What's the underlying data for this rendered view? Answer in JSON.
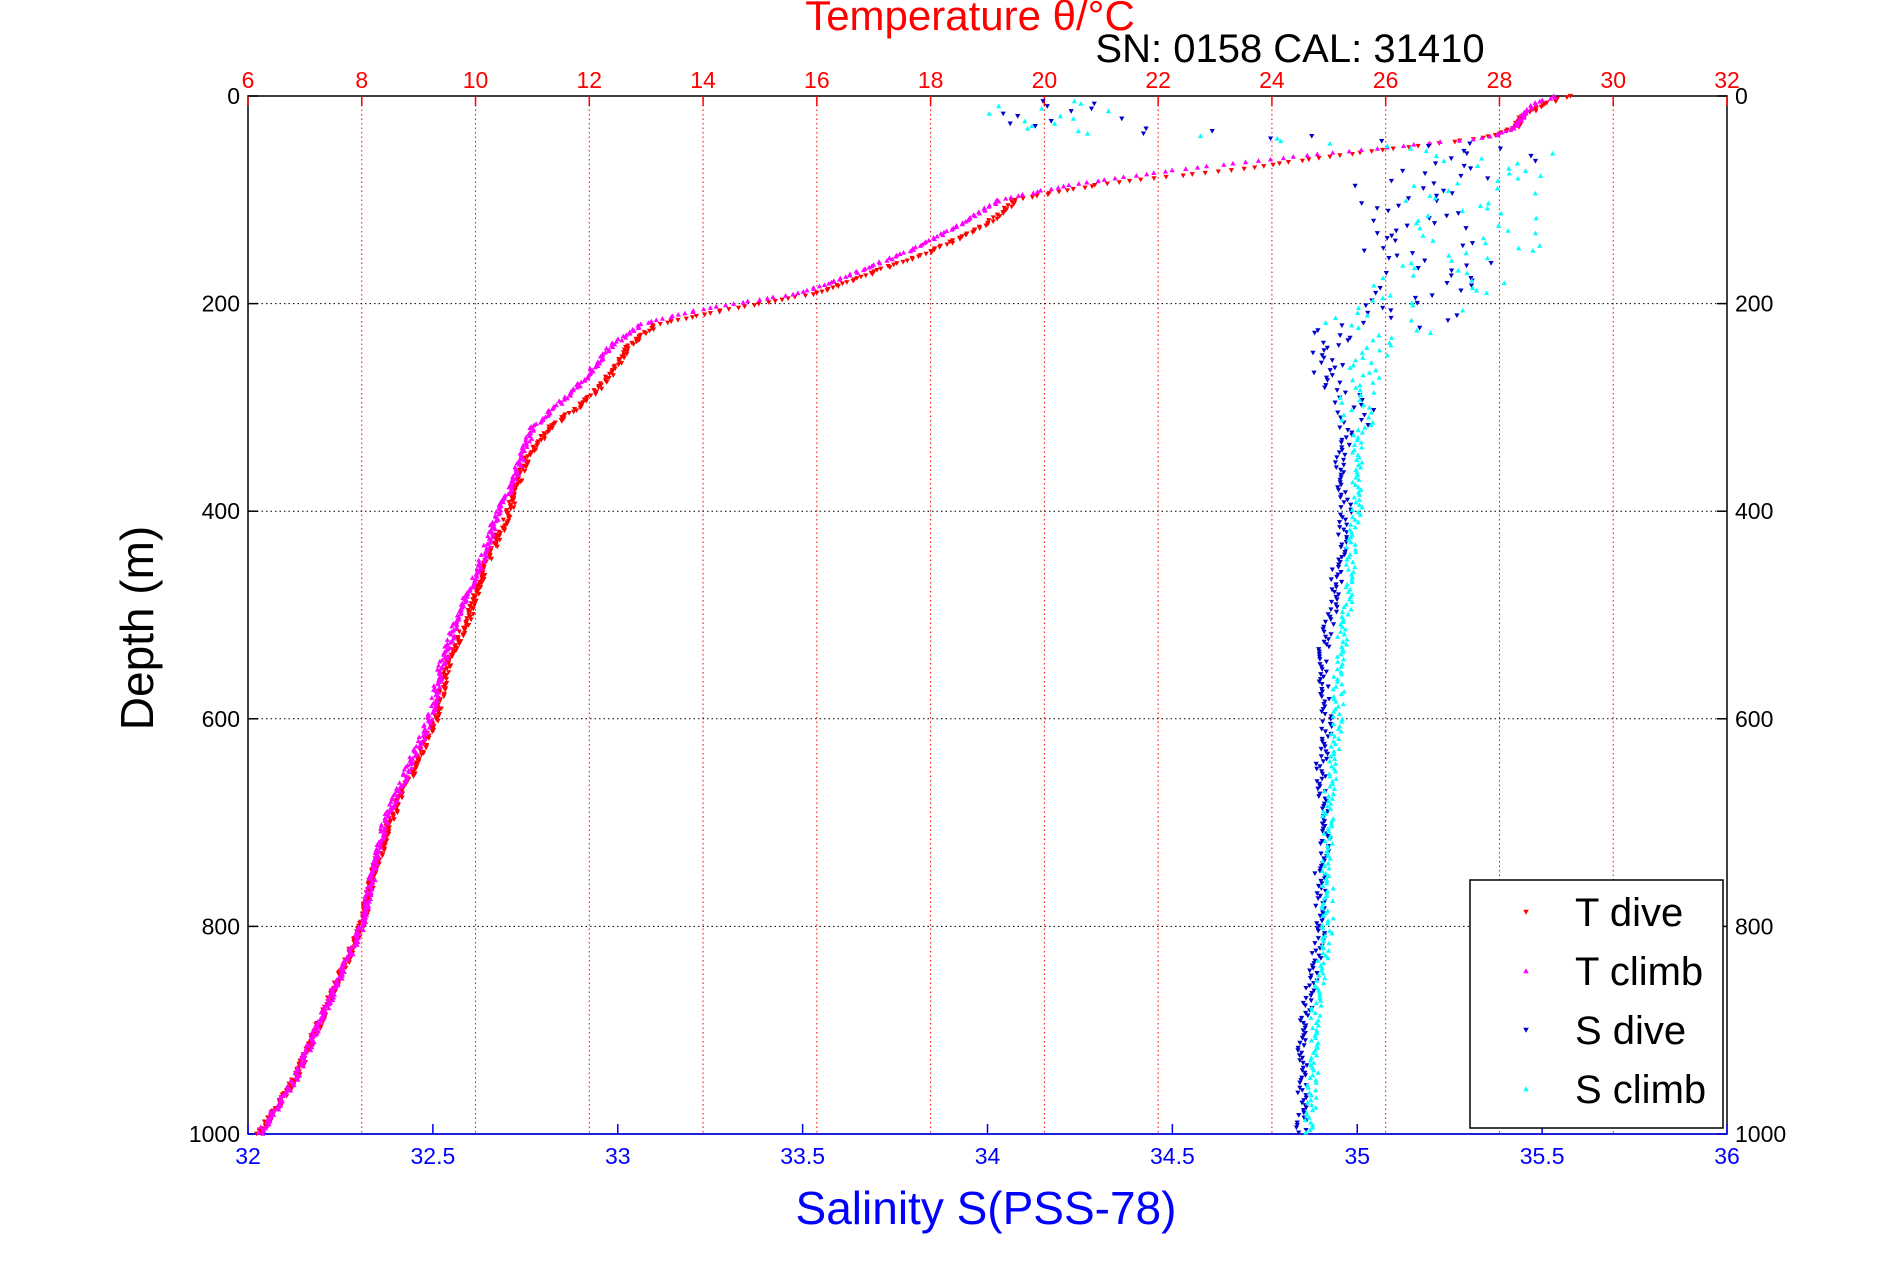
{
  "chart_data": {
    "type": "scatter",
    "title": "Temperature θ/°C",
    "subtitle": "SN: 0158  CAL: 31410",
    "xlabel": "Salinity S(PSS-78)",
    "ylabel": "Depth (m)",
    "ylim": [
      0,
      1000
    ],
    "y_reversed": true,
    "y_ticks": [
      "0",
      "200",
      "400",
      "600",
      "800",
      "1000"
    ],
    "y_tick_values": [
      0,
      200,
      400,
      600,
      800,
      1000
    ],
    "top_axis": {
      "label": "Temperature θ/°C",
      "range": [
        6,
        32
      ],
      "ticks": [
        "6",
        "8",
        "10",
        "12",
        "14",
        "16",
        "18",
        "20",
        "22",
        "24",
        "26",
        "28",
        "30",
        "32"
      ],
      "tick_values": [
        6,
        8,
        10,
        12,
        14,
        16,
        18,
        20,
        22,
        24,
        26,
        28,
        30,
        32
      ],
      "color": "#ff0000"
    },
    "bottom_axis": {
      "label": "Salinity S(PSS-78)",
      "range": [
        32,
        36
      ],
      "ticks": [
        "32",
        "32.5",
        "33",
        "33.5",
        "34",
        "34.5",
        "35",
        "35.5",
        "36"
      ],
      "tick_values": [
        32,
        32.5,
        33,
        33.5,
        34,
        34.5,
        35,
        35.5,
        36
      ],
      "color": "#0000ff"
    },
    "grid": true,
    "legend_position": "bottom-right",
    "series": [
      {
        "name": "T dive",
        "axis": "temperature",
        "color": "#ff0000",
        "marker": "triangle-down",
        "profile": [
          [
            0,
            29.2
          ],
          [
            8,
            28.8
          ],
          [
            20,
            28.4
          ],
          [
            30,
            28.3
          ],
          [
            40,
            27.8
          ],
          [
            55,
            25.5
          ],
          [
            70,
            23.5
          ],
          [
            85,
            21.0
          ],
          [
            100,
            19.5
          ],
          [
            115,
            19.2
          ],
          [
            130,
            18.8
          ],
          [
            150,
            18.0
          ],
          [
            170,
            17.0
          ],
          [
            190,
            16.0
          ],
          [
            205,
            14.5
          ],
          [
            220,
            13.2
          ],
          [
            240,
            12.7
          ],
          [
            260,
            12.5
          ],
          [
            280,
            12.2
          ],
          [
            300,
            11.8
          ],
          [
            320,
            11.3
          ],
          [
            350,
            10.9
          ],
          [
            380,
            10.7
          ],
          [
            400,
            10.6
          ],
          [
            450,
            10.2
          ],
          [
            500,
            9.9
          ],
          [
            550,
            9.5
          ],
          [
            600,
            9.3
          ],
          [
            650,
            8.9
          ],
          [
            700,
            8.5
          ],
          [
            750,
            8.2
          ],
          [
            800,
            8.0
          ],
          [
            850,
            7.6
          ],
          [
            900,
            7.2
          ],
          [
            950,
            6.8
          ],
          [
            1000,
            6.2
          ]
        ]
      },
      {
        "name": "T climb",
        "axis": "temperature",
        "color": "#ff00ff",
        "marker": "triangle-up",
        "profile": [
          [
            0,
            29.0
          ],
          [
            8,
            28.6
          ],
          [
            20,
            28.4
          ],
          [
            30,
            28.3
          ],
          [
            40,
            27.8
          ],
          [
            55,
            25.0
          ],
          [
            70,
            22.5
          ],
          [
            85,
            20.5
          ],
          [
            100,
            19.2
          ],
          [
            115,
            18.8
          ],
          [
            130,
            18.3
          ],
          [
            150,
            17.6
          ],
          [
            170,
            16.7
          ],
          [
            190,
            15.7
          ],
          [
            205,
            14.0
          ],
          [
            220,
            12.9
          ],
          [
            240,
            12.4
          ],
          [
            260,
            12.1
          ],
          [
            280,
            11.8
          ],
          [
            300,
            11.4
          ],
          [
            320,
            11.0
          ],
          [
            350,
            10.8
          ],
          [
            380,
            10.6
          ],
          [
            400,
            10.4
          ],
          [
            450,
            10.1
          ],
          [
            500,
            9.7
          ],
          [
            550,
            9.4
          ],
          [
            600,
            9.2
          ],
          [
            650,
            8.8
          ],
          [
            700,
            8.4
          ],
          [
            750,
            8.2
          ],
          [
            800,
            8.0
          ],
          [
            850,
            7.6
          ],
          [
            900,
            7.2
          ],
          [
            950,
            6.8
          ],
          [
            1000,
            6.2
          ]
        ]
      },
      {
        "name": "S dive",
        "axis": "salinity",
        "color": "#0000cc",
        "marker": "triangle-down",
        "profile": [
          [
            5,
            34.2
          ],
          [
            30,
            34.2
          ],
          [
            50,
            35.45
          ],
          [
            80,
            35.2
          ],
          [
            100,
            35.1
          ],
          [
            130,
            35.15
          ],
          [
            160,
            35.2
          ],
          [
            190,
            35.2
          ],
          [
            210,
            35.2
          ],
          [
            230,
            34.95
          ],
          [
            250,
            34.9
          ],
          [
            280,
            34.95
          ],
          [
            300,
            35.0
          ],
          [
            350,
            34.95
          ],
          [
            400,
            34.97
          ],
          [
            450,
            34.95
          ],
          [
            500,
            34.93
          ],
          [
            550,
            34.9
          ],
          [
            600,
            34.92
          ],
          [
            650,
            34.9
          ],
          [
            700,
            34.92
          ],
          [
            750,
            34.9
          ],
          [
            800,
            34.9
          ],
          [
            850,
            34.88
          ],
          [
            900,
            34.85
          ],
          [
            950,
            34.85
          ],
          [
            1000,
            34.85
          ]
        ]
      },
      {
        "name": "S climb",
        "axis": "salinity",
        "color": "#00ffff",
        "marker": "triangle-up",
        "profile": [
          [
            5,
            34.2
          ],
          [
            20,
            34.17
          ],
          [
            35,
            34.15
          ],
          [
            40,
            34.7
          ],
          [
            55,
            35.4
          ],
          [
            70,
            35.35
          ],
          [
            100,
            35.3
          ],
          [
            130,
            35.35
          ],
          [
            160,
            35.3
          ],
          [
            190,
            35.2
          ],
          [
            210,
            35.1
          ],
          [
            230,
            35.05
          ],
          [
            250,
            35.05
          ],
          [
            280,
            35.0
          ],
          [
            300,
            35.0
          ],
          [
            350,
            35.0
          ],
          [
            400,
            35.0
          ],
          [
            450,
            34.98
          ],
          [
            500,
            34.97
          ],
          [
            550,
            34.95
          ],
          [
            600,
            34.95
          ],
          [
            650,
            34.93
          ],
          [
            700,
            34.92
          ],
          [
            750,
            34.92
          ],
          [
            800,
            34.92
          ],
          [
            850,
            34.9
          ],
          [
            900,
            34.88
          ],
          [
            950,
            34.88
          ],
          [
            1000,
            34.87
          ]
        ]
      }
    ]
  }
}
